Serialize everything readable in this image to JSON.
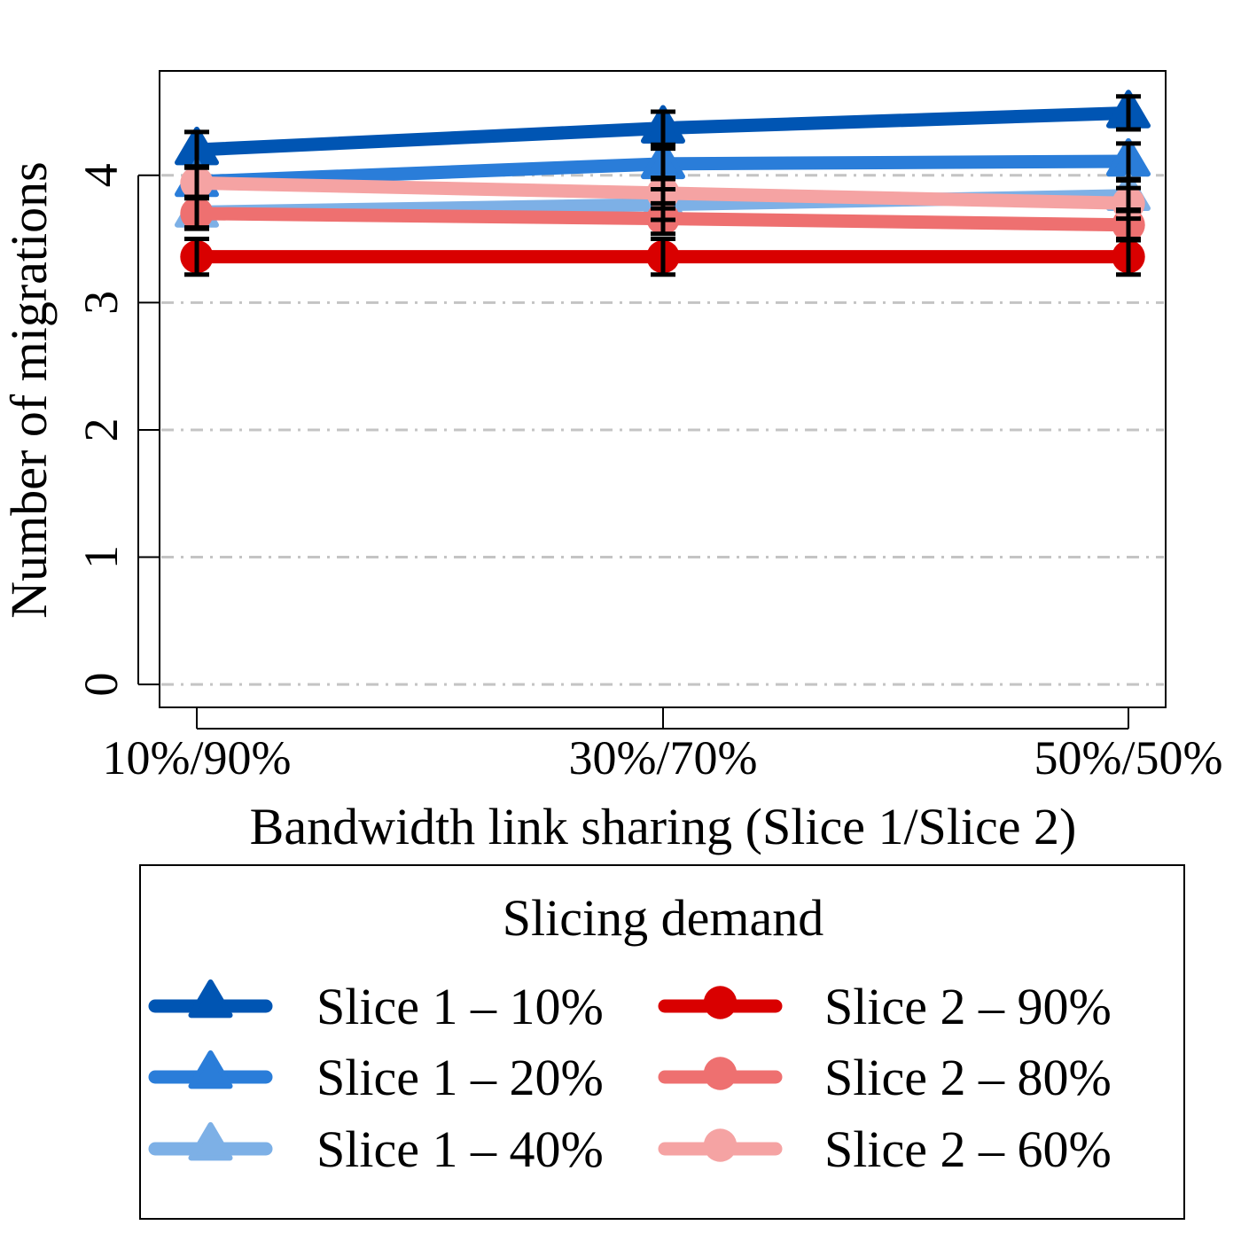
{
  "chart_data": {
    "type": "line",
    "xlabel": "Bandwidth link sharing (Slice 1/Slice 2)",
    "ylabel": "Number of migrations",
    "categories": [
      "10%/90%",
      "30%/70%",
      "50%/50%"
    ],
    "yticks": [
      "0",
      "1",
      "2",
      "3",
      "4"
    ],
    "ylim": [
      -0.18,
      4.82
    ],
    "grid": "horizontal dash-dot",
    "legend": {
      "title": "Slicing demand",
      "placement": "below plot"
    },
    "series": [
      {
        "name": "Slice 1 – 10%",
        "marker": "triangle",
        "color": "#0055B3",
        "values": [
          4.2,
          4.37,
          4.49
        ],
        "error": [
          0.14,
          0.13,
          0.13
        ]
      },
      {
        "name": "Slice 1 – 20%",
        "marker": "triangle",
        "color": "#2A7DD9",
        "values": [
          3.95,
          4.09,
          4.11
        ],
        "error": [
          0.12,
          0.12,
          0.14
        ]
      },
      {
        "name": "Slice 1 – 40%",
        "marker": "triangle",
        "color": "#7DB0E6",
        "values": [
          3.71,
          3.77,
          3.84
        ],
        "error": [
          0.12,
          0.12,
          0.12
        ]
      },
      {
        "name": "Slice 2 – 90%",
        "marker": "circle",
        "color": "#D90000",
        "values": [
          3.36,
          3.36,
          3.36
        ],
        "error": [
          0.14,
          0.14,
          0.14
        ]
      },
      {
        "name": "Slice 2 – 80%",
        "marker": "circle",
        "color": "#EE7070",
        "values": [
          3.7,
          3.66,
          3.61
        ],
        "error": [
          0.12,
          0.12,
          0.12
        ]
      },
      {
        "name": "Slice 2 – 60%",
        "marker": "circle",
        "color": "#F5A3A3",
        "values": [
          3.94,
          3.86,
          3.78
        ],
        "error": [
          0.12,
          0.12,
          0.12
        ]
      }
    ]
  }
}
